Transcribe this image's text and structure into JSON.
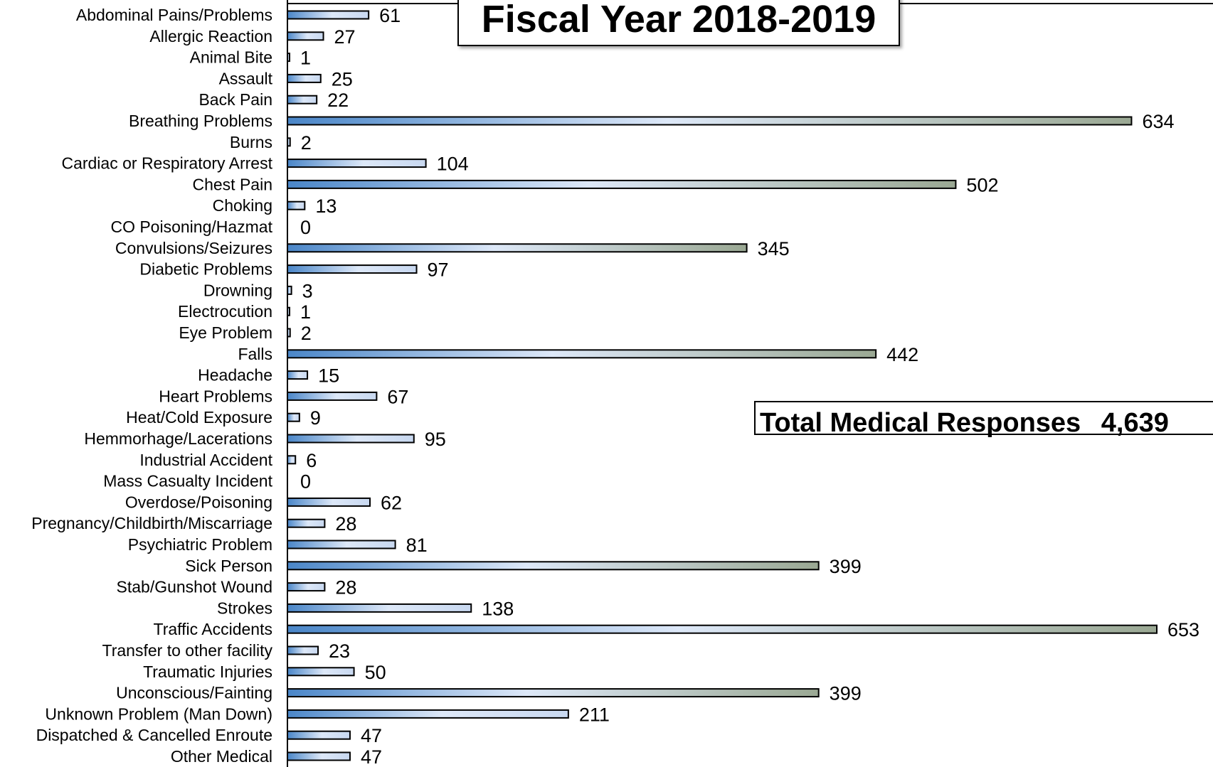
{
  "chart_data": {
    "type": "bar",
    "orientation": "horizontal",
    "title": "Fiscal Year 2018-2019",
    "annotation": {
      "label": "Total Medical Responses",
      "value": "4,639"
    },
    "categories": [
      "Abdominal Pains/Problems",
      "Allergic Reaction",
      "Animal Bite",
      "Assault",
      "Back Pain",
      "Breathing Problems",
      "Burns",
      "Cardiac or Respiratory Arrest",
      "Chest Pain",
      "Choking",
      "CO Poisoning/Hazmat",
      "Convulsions/Seizures",
      "Diabetic Problems",
      "Drowning",
      "Electrocution",
      "Eye Problem",
      "Falls",
      "Headache",
      "Heart Problems",
      "Heat/Cold Exposure",
      "Hemmorhage/Lacerations",
      "Industrial Accident",
      "Mass Casualty Incident",
      "Overdose/Poisoning",
      "Pregnancy/Childbirth/Miscarriage",
      "Psychiatric Problem",
      "Sick Person",
      "Stab/Gunshot Wound",
      "Strokes",
      "Traffic Accidents",
      "Transfer to other facility",
      "Traumatic Injuries",
      "Unconscious/Fainting",
      "Unknown Problem (Man Down)",
      "Dispatched & Cancelled Enroute",
      "Other Medical"
    ],
    "values": [
      61,
      27,
      1,
      25,
      22,
      634,
      2,
      104,
      502,
      13,
      0,
      345,
      97,
      3,
      1,
      2,
      442,
      15,
      67,
      9,
      95,
      6,
      0,
      62,
      28,
      81,
      399,
      28,
      138,
      653,
      23,
      50,
      399,
      211,
      47,
      47
    ],
    "xlim": [
      0,
      653
    ],
    "grid": false,
    "legend": "none",
    "colors": {
      "bar_start": "#4a86c8",
      "bar_mid": "#dde8f8",
      "bar_end_large": "#9aa893",
      "bar_end_small": "#c8d8f0",
      "outline": "#000000"
    }
  }
}
